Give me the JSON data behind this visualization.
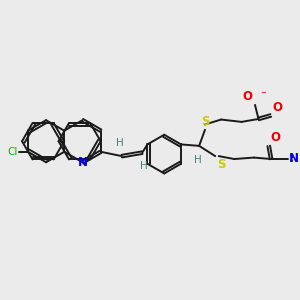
{
  "background_color": "#ebebeb",
  "bond_color": "#1a1a1a",
  "bond_width": 1.4,
  "Cl_color": "#00bb00",
  "N_color": "#0000ee",
  "S_color": "#cccc00",
  "O_color": "#ee0000",
  "H_color": "#408080",
  "figsize": [
    3.0,
    3.0
  ],
  "dpi": 100,
  "xlim": [
    0,
    10
  ],
  "ylim": [
    0,
    10
  ]
}
